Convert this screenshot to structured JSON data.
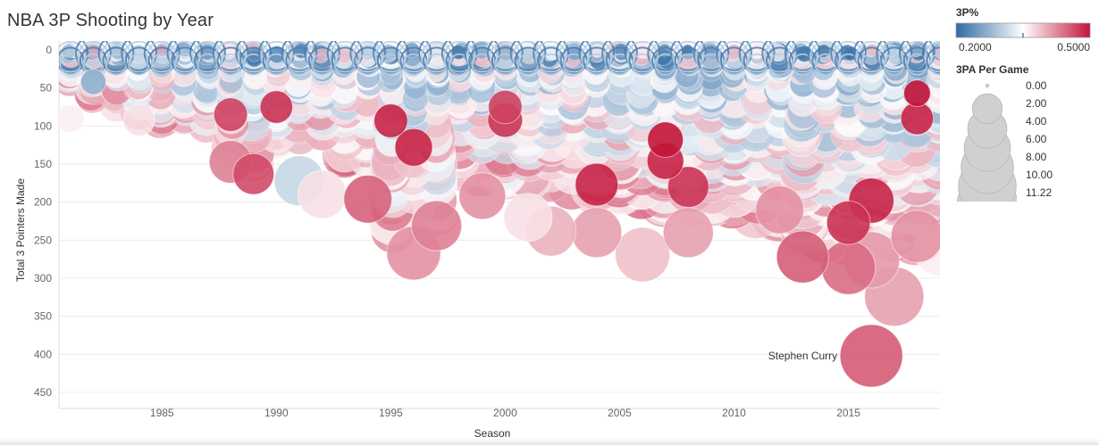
{
  "chart_data": {
    "type": "scatter",
    "title": "NBA 3P Shooting by Year",
    "xlabel": "Season",
    "ylabel": "Total 3 Pointers Made",
    "xlim": [
      1980.5,
      2019
    ],
    "ylim": [
      0,
      450
    ],
    "y_reversed": true,
    "x_ticks": [
      1985,
      1990,
      1995,
      2000,
      2005,
      2010,
      2015
    ],
    "y_ticks": [
      0,
      50,
      100,
      150,
      200,
      250,
      300,
      350,
      400,
      450
    ],
    "grid": "horizontal",
    "color": {
      "field": "3P%",
      "title": "3P%",
      "min": 0.2,
      "mid": 0.35,
      "max": 0.5,
      "min_label": "0.2000",
      "max_label": "0.5000",
      "low_color": "#2e6aa3",
      "mid_color": "#ffffff",
      "high_color": "#c2143a"
    },
    "size": {
      "field": "3PA Per Game",
      "title": "3PA Per Game",
      "legend": [
        "0.00",
        "2.00",
        "4.00",
        "6.00",
        "8.00",
        "10.00",
        "11.22"
      ],
      "legend_values": [
        0.0,
        2.0,
        4.0,
        6.0,
        8.0,
        10.0,
        11.22
      ],
      "max": 11.22
    },
    "annotations": [
      {
        "label": "Stephen Curry",
        "x": 2016,
        "y": 402
      }
    ],
    "highlighted_points": [
      {
        "x": 2016,
        "y": 402,
        "three_pa": 11.2,
        "pct": 0.454
      },
      {
        "x": 2017,
        "y": 324,
        "three_pa": 10.0,
        "pct": 0.41
      },
      {
        "x": 2015,
        "y": 286,
        "three_pa": 8.2,
        "pct": 0.443
      },
      {
        "x": 2013,
        "y": 272,
        "three_pa": 7.6,
        "pct": 0.453
      },
      {
        "x": 2016,
        "y": 276,
        "three_pa": 9.0,
        "pct": 0.415
      },
      {
        "x": 1996,
        "y": 267,
        "three_pa": 8.2,
        "pct": 0.42
      },
      {
        "x": 2006,
        "y": 269,
        "three_pa": 8.4,
        "pct": 0.39
      },
      {
        "x": 2004,
        "y": 240,
        "three_pa": 7.0,
        "pct": 0.41
      },
      {
        "x": 2008,
        "y": 240,
        "three_pa": 7.0,
        "pct": 0.41
      },
      {
        "x": 1991,
        "y": 172,
        "three_pa": 7.0,
        "pct": 0.31
      },
      {
        "x": 1989,
        "y": 163,
        "three_pa": 4.6,
        "pct": 0.465
      },
      {
        "x": 1995,
        "y": 93,
        "three_pa": 3.0,
        "pct": 0.49
      },
      {
        "x": 1996,
        "y": 128,
        "three_pa": 3.8,
        "pct": 0.49
      },
      {
        "x": 1990,
        "y": 75,
        "three_pa": 2.8,
        "pct": 0.48
      },
      {
        "x": 2000,
        "y": 75,
        "three_pa": 3.0,
        "pct": 0.47
      },
      {
        "x": 2000,
        "y": 92,
        "three_pa": 3.2,
        "pct": 0.48
      },
      {
        "x": 2007,
        "y": 118,
        "three_pa": 3.4,
        "pct": 0.5
      },
      {
        "x": 2007,
        "y": 146,
        "three_pa": 3.6,
        "pct": 0.49
      },
      {
        "x": 2004,
        "y": 177,
        "three_pa": 5.0,
        "pct": 0.49
      },
      {
        "x": 2008,
        "y": 180,
        "three_pa": 4.6,
        "pct": 0.48
      },
      {
        "x": 2016,
        "y": 198,
        "three_pa": 5.6,
        "pct": 0.49
      },
      {
        "x": 2015,
        "y": 227,
        "three_pa": 5.2,
        "pct": 0.48
      },
      {
        "x": 2018,
        "y": 90,
        "three_pa": 2.8,
        "pct": 0.49
      },
      {
        "x": 2018,
        "y": 57,
        "three_pa": 1.8,
        "pct": 0.5
      },
      {
        "x": 1982,
        "y": 42,
        "three_pa": 1.6,
        "pct": 0.27
      },
      {
        "x": 1988,
        "y": 85,
        "three_pa": 3.0,
        "pct": 0.47
      },
      {
        "x": 1988,
        "y": 147,
        "three_pa": 5.0,
        "pct": 0.43
      },
      {
        "x": 1994,
        "y": 196,
        "three_pa": 6.4,
        "pct": 0.45
      },
      {
        "x": 1997,
        "y": 231,
        "three_pa": 7.0,
        "pct": 0.43
      },
      {
        "x": 1999,
        "y": 192,
        "three_pa": 6.0,
        "pct": 0.42
      },
      {
        "x": 2002,
        "y": 238,
        "three_pa": 7.0,
        "pct": 0.4
      },
      {
        "x": 2012,
        "y": 210,
        "three_pa": 6.4,
        "pct": 0.42
      },
      {
        "x": 2018,
        "y": 245,
        "three_pa": 7.6,
        "pct": 0.42
      },
      {
        "x": 2019,
        "y": 262,
        "three_pa": 8.0,
        "pct": 0.36
      },
      {
        "x": 1981,
        "y": 90,
        "three_pa": 2.0,
        "pct": 0.36
      },
      {
        "x": 1984,
        "y": 92,
        "three_pa": 2.6,
        "pct": 0.37
      },
      {
        "x": 1992,
        "y": 190,
        "three_pa": 6.5,
        "pct": 0.37
      },
      {
        "x": 2001,
        "y": 220,
        "three_pa": 6.5,
        "pct": 0.37
      }
    ]
  }
}
